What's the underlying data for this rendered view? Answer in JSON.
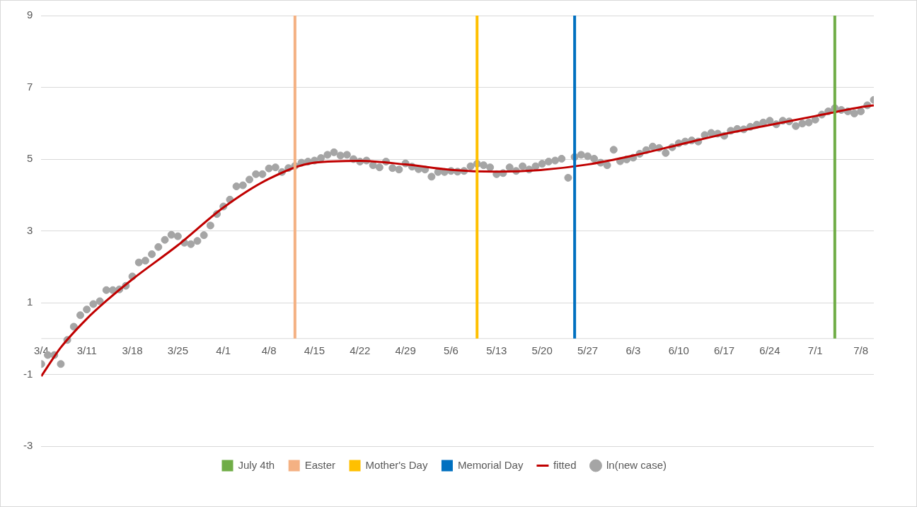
{
  "chart_data": {
    "type": "scatter",
    "xlim": [
      "--03-04",
      "--07-10"
    ],
    "xticks": [
      {
        "value": "--03-04",
        "label": "3/4"
      },
      {
        "value": "--03-11",
        "label": "3/11"
      },
      {
        "value": "--03-18",
        "label": "3/18"
      },
      {
        "value": "--03-25",
        "label": "3/25"
      },
      {
        "value": "--04-01",
        "label": "4/1"
      },
      {
        "value": "--04-08",
        "label": "4/8"
      },
      {
        "value": "--04-15",
        "label": "4/15"
      },
      {
        "value": "--04-22",
        "label": "4/22"
      },
      {
        "value": "--04-29",
        "label": "4/29"
      },
      {
        "value": "--05-06",
        "label": "5/6"
      },
      {
        "value": "--05-13",
        "label": "5/13"
      },
      {
        "value": "--05-20",
        "label": "5/20"
      },
      {
        "value": "--05-27",
        "label": "5/27"
      },
      {
        "value": "--06-03",
        "label": "6/3"
      },
      {
        "value": "--06-10",
        "label": "6/10"
      },
      {
        "value": "--06-17",
        "label": "6/17"
      },
      {
        "value": "--06-24",
        "label": "6/24"
      },
      {
        "value": "--07-01",
        "label": "7/1"
      },
      {
        "value": "--07-08",
        "label": "7/8"
      }
    ],
    "ylim": [
      -3,
      9
    ],
    "yticks": [
      -3,
      -1,
      1,
      3,
      5,
      7,
      9
    ],
    "grid": "y",
    "legend": "bottom",
    "ref_lines": [
      {
        "axis": "x",
        "value": "--07-04",
        "label": "July 4th",
        "color": "#70ad47"
      },
      {
        "axis": "x",
        "value": "--04-12",
        "label": "Easter",
        "color": "#f4b183"
      },
      {
        "axis": "x",
        "value": "--05-10",
        "label": "Mother's Day",
        "color": "#ffc000"
      },
      {
        "axis": "x",
        "value": "--05-25",
        "label": "Memorial Day",
        "color": "#0070c0"
      }
    ],
    "series": [
      {
        "name": "fitted",
        "type": "line",
        "color": "#c00000",
        "marker": "none",
        "x": [
          "--03-04",
          "--03-07",
          "--03-11",
          "--03-14",
          "--03-18",
          "--03-25",
          "--04-01",
          "--04-08",
          "--04-15",
          "--04-22",
          "--04-29",
          "--05-06",
          "--05-13",
          "--05-20",
          "--05-27",
          "--06-03",
          "--06-10",
          "--06-17",
          "--06-24",
          "--07-01",
          "--07-08",
          "--07-10"
        ],
        "values": [
          -1.05,
          -0.25,
          0.55,
          1.05,
          1.65,
          2.6,
          3.65,
          4.45,
          4.9,
          4.95,
          4.85,
          4.7,
          4.65,
          4.7,
          4.85,
          5.1,
          5.4,
          5.7,
          5.95,
          6.2,
          6.45,
          6.5
        ]
      },
      {
        "name": "ln(new case)",
        "color": "#a5a5a5",
        "marker": "circle",
        "x": [
          "--03-04",
          "--03-05",
          "--03-06",
          "--03-07",
          "--03-08",
          "--03-09",
          "--03-10",
          "--03-11",
          "--03-12",
          "--03-13",
          "--03-14",
          "--03-15",
          "--03-16",
          "--03-17",
          "--03-18",
          "--03-19",
          "--03-20",
          "--03-21",
          "--03-22",
          "--03-23",
          "--03-24",
          "--03-25",
          "--03-26",
          "--03-27",
          "--03-28",
          "--03-29",
          "--03-30",
          "--03-31",
          "--04-01",
          "--04-02",
          "--04-03",
          "--04-04",
          "--04-05",
          "--04-06",
          "--04-07",
          "--04-08",
          "--04-09",
          "--04-10",
          "--04-11",
          "--04-12",
          "--04-13",
          "--04-14",
          "--04-15",
          "--04-16",
          "--04-17",
          "--04-18",
          "--04-19",
          "--04-20",
          "--04-21",
          "--04-22",
          "--04-23",
          "--04-24",
          "--04-25",
          "--04-26",
          "--04-27",
          "--04-28",
          "--04-29",
          "--04-30",
          "--05-01",
          "--05-02",
          "--05-03",
          "--05-04",
          "--05-05",
          "--05-06",
          "--05-07",
          "--05-08",
          "--05-09",
          "--05-10",
          "--05-11",
          "--05-12",
          "--05-13",
          "--05-14",
          "--05-15",
          "--05-16",
          "--05-17",
          "--05-18",
          "--05-19",
          "--05-20",
          "--05-21",
          "--05-22",
          "--05-23",
          "--05-24",
          "--05-25",
          "--05-26",
          "--05-27",
          "--05-28",
          "--05-29",
          "--05-30",
          "--05-31",
          "--06-01",
          "--06-02",
          "--06-03",
          "--06-04",
          "--06-05",
          "--06-06",
          "--06-07",
          "--06-08",
          "--06-09",
          "--06-10",
          "--06-11",
          "--06-12",
          "--06-13",
          "--06-14",
          "--06-15",
          "--06-16",
          "--06-17",
          "--06-18",
          "--06-19",
          "--06-20",
          "--06-21",
          "--06-22",
          "--06-23",
          "--06-24",
          "--06-25",
          "--06-26",
          "--06-27",
          "--06-28",
          "--06-29",
          "--06-30",
          "--07-01",
          "--07-02",
          "--07-03",
          "--07-04",
          "--07-05",
          "--07-06",
          "--07-07",
          "--07-08",
          "--07-09",
          "--07-10"
        ],
        "values": [
          -0.71,
          -0.46,
          -0.46,
          -0.71,
          -0.04,
          0.33,
          0.65,
          0.81,
          0.96,
          1.04,
          1.35,
          1.35,
          1.37,
          1.47,
          1.73,
          2.12,
          2.17,
          2.35,
          2.55,
          2.75,
          2.89,
          2.85,
          2.67,
          2.63,
          2.72,
          2.88,
          3.15,
          3.47,
          3.68,
          3.87,
          4.24,
          4.27,
          4.43,
          4.58,
          4.58,
          4.74,
          4.77,
          4.64,
          4.75,
          4.81,
          4.9,
          4.93,
          4.96,
          5.03,
          5.12,
          5.19,
          5.1,
          5.12,
          5.0,
          4.93,
          4.96,
          4.83,
          4.77,
          4.93,
          4.75,
          4.71,
          4.88,
          4.79,
          4.72,
          4.71,
          4.51,
          4.64,
          4.64,
          4.67,
          4.65,
          4.67,
          4.8,
          4.87,
          4.83,
          4.77,
          4.58,
          4.61,
          4.77,
          4.67,
          4.8,
          4.71,
          4.8,
          4.87,
          4.93,
          4.96,
          5.01,
          4.48,
          5.06,
          5.12,
          5.08,
          5.01,
          4.9,
          4.83,
          5.26,
          4.94,
          4.99,
          5.04,
          5.15,
          5.25,
          5.35,
          5.31,
          5.17,
          5.33,
          5.44,
          5.49,
          5.52,
          5.49,
          5.67,
          5.73,
          5.71,
          5.65,
          5.79,
          5.84,
          5.83,
          5.9,
          5.96,
          6.02,
          6.07,
          5.97,
          6.07,
          6.05,
          5.92,
          5.99,
          6.02,
          6.1,
          6.24,
          6.33,
          6.42,
          6.37,
          6.33,
          6.27,
          6.33,
          6.5,
          6.65
        ]
      }
    ]
  }
}
